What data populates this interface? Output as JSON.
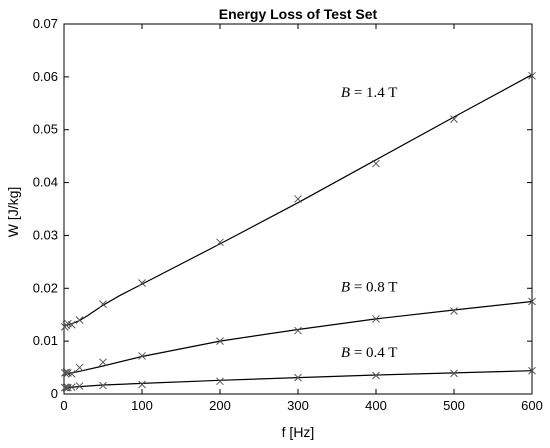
{
  "chart_data": {
    "type": "scatter",
    "title": "Energy Loss of Test Set",
    "xlabel": "f [Hz]",
    "ylabel": "W [J/kg]",
    "xlim": [
      0,
      600
    ],
    "ylim": [
      0,
      0.07
    ],
    "xticks": [
      0,
      100,
      200,
      300,
      400,
      500,
      600
    ],
    "yticks": [
      0,
      0.01,
      0.02,
      0.03,
      0.04,
      0.05,
      0.06,
      0.07
    ],
    "yticklabels": [
      "0",
      "0.01",
      "0.02",
      "0.03",
      "0.04",
      "0.05",
      "0.06",
      "0.07"
    ],
    "grid": false,
    "legend": "none",
    "series": [
      {
        "name": "B = 1.4 T",
        "annotation": {
          "var": "B",
          "text": " = 1.4 T"
        },
        "markers": {
          "x": [
            1,
            3,
            5,
            10,
            20,
            50,
            100,
            200,
            300,
            400,
            500,
            600
          ],
          "y": [
            0.0127,
            0.013,
            0.0133,
            0.0131,
            0.014,
            0.017,
            0.021,
            0.0287,
            0.0369,
            0.0436,
            0.052,
            0.0602
          ]
        },
        "fit": {
          "x": [
            0,
            5,
            10,
            20,
            30,
            50,
            70,
            100,
            200,
            300,
            400,
            500,
            600
          ],
          "y": [
            0.0128,
            0.0131,
            0.0133,
            0.0139,
            0.0148,
            0.0168,
            0.0185,
            0.0208,
            0.0284,
            0.0362,
            0.0443,
            0.0524,
            0.0604
          ]
        }
      },
      {
        "name": "B = 0.8 T",
        "annotation": {
          "var": "B",
          "text": " = 0.8 T"
        },
        "markers": {
          "x": [
            1,
            3,
            5,
            10,
            20,
            50,
            100,
            200,
            300,
            400,
            500,
            600
          ],
          "y": [
            0.004,
            0.0041,
            0.004,
            0.0038,
            0.005,
            0.006,
            0.0072,
            0.01,
            0.012,
            0.0142,
            0.0157,
            0.0175
          ]
        },
        "fit": {
          "x": [
            0,
            10,
            20,
            50,
            100,
            200,
            300,
            400,
            500,
            600
          ],
          "y": [
            0.0037,
            0.004,
            0.0043,
            0.0053,
            0.0071,
            0.01,
            0.0122,
            0.0142,
            0.0159,
            0.0175
          ]
        }
      },
      {
        "name": "B = 0.4 T",
        "annotation": {
          "var": "B",
          "text": " = 0.4 T"
        },
        "markers": {
          "x": [
            1,
            3,
            5,
            10,
            20,
            50,
            100,
            200,
            300,
            400,
            500,
            600
          ],
          "y": [
            0.0012,
            0.0012,
            0.0012,
            0.0013,
            0.0015,
            0.0016,
            0.0018,
            0.0024,
            0.0031,
            0.0035,
            0.0039,
            0.0044
          ]
        },
        "fit": {
          "x": [
            0,
            10,
            20,
            50,
            100,
            200,
            300,
            400,
            500,
            600
          ],
          "y": [
            0.0012,
            0.0013,
            0.0014,
            0.0017,
            0.002,
            0.0026,
            0.0031,
            0.0036,
            0.004,
            0.0044
          ]
        }
      }
    ],
    "annotation_positions_data": [
      {
        "x": 355,
        "y": 0.0562
      },
      {
        "x": 355,
        "y": 0.0194
      },
      {
        "x": 355,
        "y": 0.007
      }
    ]
  }
}
